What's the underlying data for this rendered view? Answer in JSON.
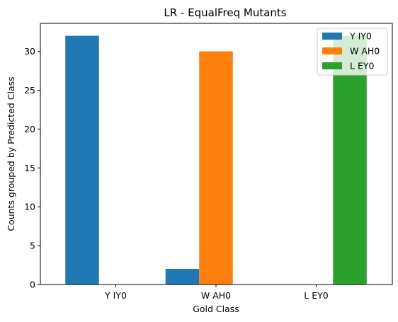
{
  "chart_data": {
    "type": "bar",
    "title": "LR - EqualFreq Mutants",
    "xlabel": "Gold Class",
    "ylabel": "Counts grouped by Predicted Class",
    "categories": [
      "Y IY0",
      "W AH0",
      "L EY0"
    ],
    "series": [
      {
        "name": "Y IY0",
        "color": "#1f77b4",
        "values": [
          32,
          2,
          0
        ]
      },
      {
        "name": "W AH0",
        "color": "#ff7f0e",
        "values": [
          0,
          30,
          0
        ]
      },
      {
        "name": "L EY0",
        "color": "#2ca02c",
        "values": [
          0,
          0,
          32
        ]
      }
    ],
    "ylim": [
      0,
      33.6
    ],
    "yticks": [
      "0",
      "5",
      "10",
      "15",
      "20",
      "25",
      "30"
    ],
    "grid": false,
    "legend_position": "top-right"
  }
}
